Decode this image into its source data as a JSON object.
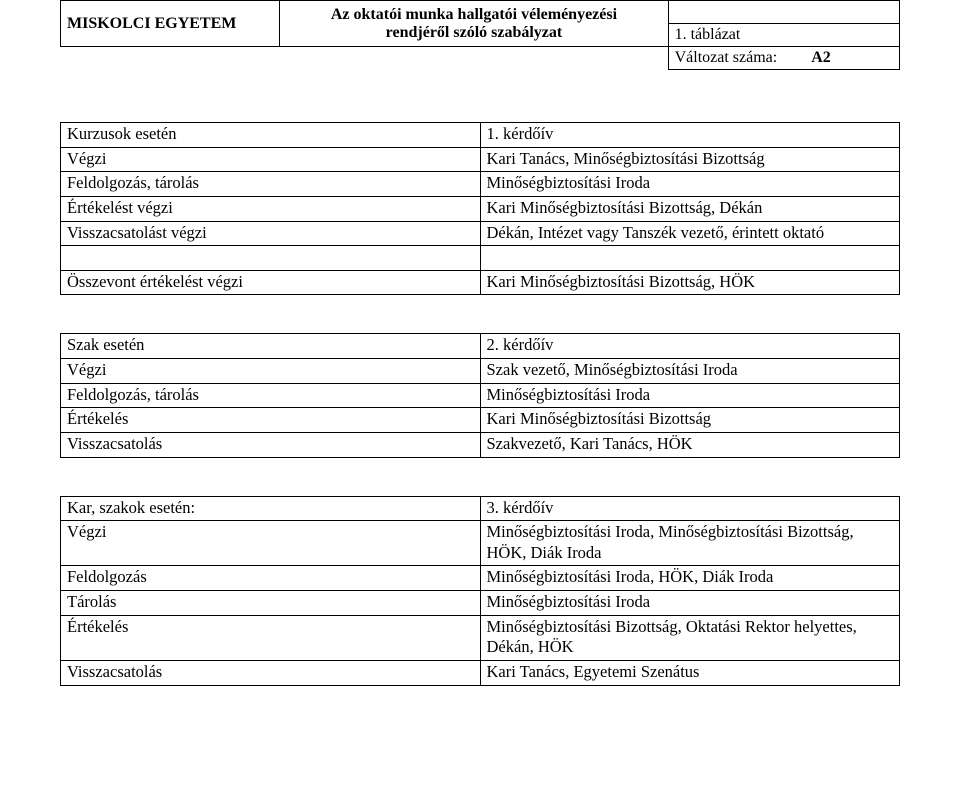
{
  "header": {
    "org": "MISKOLCI  EGYETEM",
    "title_line1": "Az oktatói munka hallgatói véleményezési",
    "title_line2": "rendjéről szóló szabályzat",
    "tab_label": "1. táblázat",
    "version_label": "Változat száma:",
    "version_value": "A2"
  },
  "table1": {
    "rows": [
      [
        "Kurzusok esetén",
        "1. kérdőív"
      ],
      [
        "Végzi",
        "Kari Tanács, Minőségbiztosítási Bizottság"
      ],
      [
        "Feldolgozás, tárolás",
        "Minőségbiztosítási Iroda"
      ],
      [
        "Értékelést végzi",
        "Kari Minőségbiztosítási Bizottság, Dékán"
      ],
      [
        "Visszacsatolást végzi",
        "Dékán, Intézet vagy Tanszék vezető, érintett oktató"
      ]
    ],
    "gap_row": [
      "Összevont értékelést végzi",
      "Kari Minőségbiztosítási Bizottság, HÖK"
    ]
  },
  "table2": {
    "rows": [
      [
        "Szak esetén",
        "2. kérdőív"
      ],
      [
        "Végzi",
        "Szak vezető, Minőségbiztosítási Iroda"
      ],
      [
        "Feldolgozás, tárolás",
        "Minőségbiztosítási Iroda"
      ],
      [
        "Értékelés",
        "Kari Minőségbiztosítási Bizottság"
      ],
      [
        "Visszacsatolás",
        "Szakvezető, Kari Tanács, HÖK"
      ]
    ]
  },
  "table3": {
    "rows": [
      [
        "Kar, szakok esetén:",
        "3. kérdőív"
      ],
      [
        "Végzi",
        "Minőségbiztosítási Iroda, Minőségbiztosítási Bizottság, HÖK, Diák Iroda"
      ],
      [
        "Feldolgozás",
        "Minőségbiztosítási Iroda, HÖK, Diák Iroda"
      ],
      [
        "Tárolás",
        "Minőségbiztosítási Iroda"
      ],
      [
        "Értékelés",
        "Minőségbiztosítási Bizottság, Oktatási Rektor helyettes, Dékán, HÖK"
      ],
      [
        "Visszacsatolás",
        "Kari Tanács, Egyetemi Szenátus"
      ]
    ]
  }
}
